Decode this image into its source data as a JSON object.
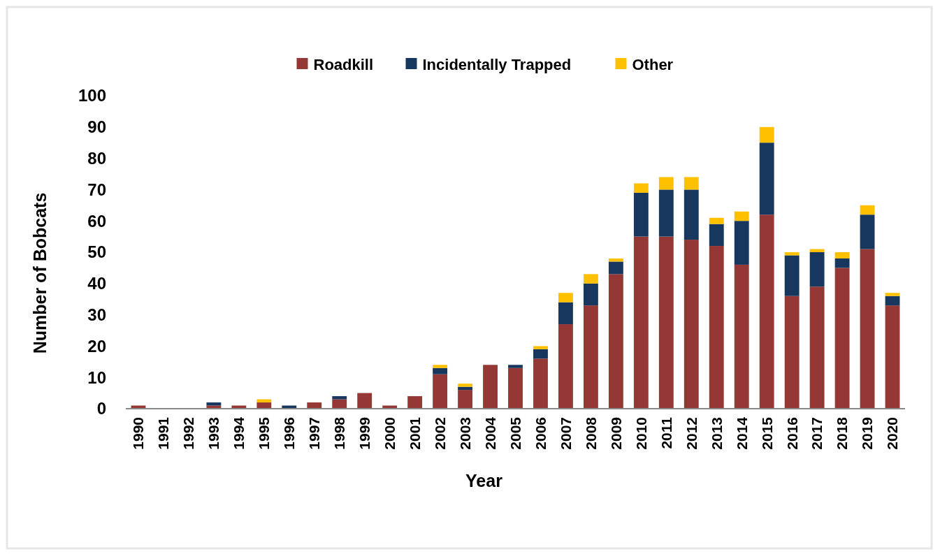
{
  "chart_data": {
    "type": "bar",
    "stacked": true,
    "xlabel": "Year",
    "ylabel": "Number of Bobcats",
    "categories": [
      "1990",
      "1991",
      "1992",
      "1993",
      "1994",
      "1995",
      "1996",
      "1997",
      "1998",
      "1999",
      "2000",
      "2001",
      "2002",
      "2003",
      "2004",
      "2005",
      "2006",
      "2007",
      "2008",
      "2009",
      "2010",
      "2011",
      "2012",
      "2013",
      "2014",
      "2015",
      "2016",
      "2017",
      "2018",
      "2019",
      "2020"
    ],
    "series": [
      {
        "name": "Roadkill",
        "color": "#953735",
        "values": [
          1,
          0,
          0,
          1,
          1,
          2,
          0,
          2,
          3,
          5,
          1,
          4,
          11,
          6,
          14,
          13,
          16,
          27,
          33,
          43,
          55,
          55,
          54,
          52,
          46,
          62,
          36,
          39,
          45,
          51,
          33
        ]
      },
      {
        "name": "Incidentally Trapped",
        "color": "#17375e",
        "values": [
          0,
          0,
          0,
          1,
          0,
          0,
          1,
          0,
          1,
          0,
          0,
          0,
          2,
          1,
          0,
          1,
          3,
          7,
          7,
          4,
          14,
          15,
          16,
          7,
          14,
          23,
          13,
          11,
          3,
          11,
          3
        ]
      },
      {
        "name": "Other",
        "color": "#ffc000",
        "values": [
          0,
          0,
          0,
          0,
          0,
          1,
          0,
          0,
          0,
          0,
          0,
          0,
          1,
          1,
          0,
          0,
          1,
          3,
          3,
          1,
          3,
          4,
          4,
          2,
          3,
          5,
          1,
          1,
          2,
          3,
          1
        ]
      }
    ],
    "ylim": [
      0,
      100
    ],
    "yticks": [
      0,
      10,
      20,
      30,
      40,
      50,
      60,
      70,
      80,
      90,
      100
    ],
    "grid": false,
    "legend": "top"
  }
}
